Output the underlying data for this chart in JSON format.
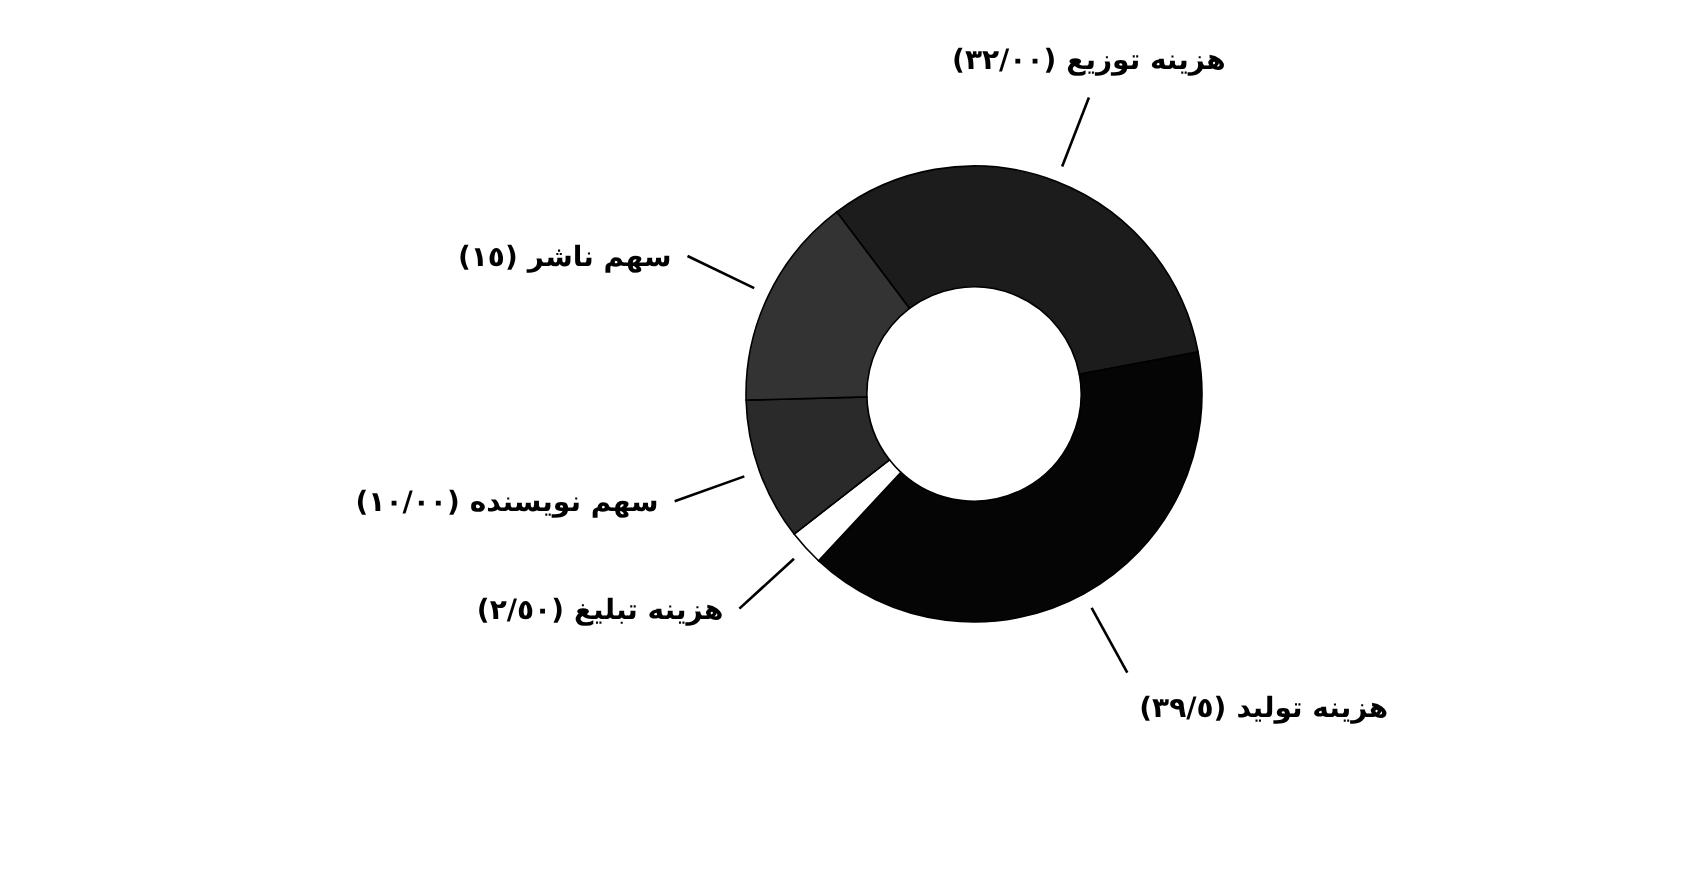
{
  "chart_data": {
    "type": "donut",
    "categories": [
      "هزینه توزیع",
      "هزینه تولید",
      "هزینه تبلیغ",
      "سهم نویسنده",
      "سهم ناشر"
    ],
    "values": [
      32.0,
      39.5,
      2.5,
      10.0,
      15
    ],
    "value_labels": [
      "(٣٢/٠٠)",
      "(٣٩/٥)",
      "(٢/٥٠)",
      "(١٠/٠٠)",
      "(١٥)"
    ],
    "colors": [
      "#1c1c1c",
      "#050505",
      "#ffffff",
      "#2a2a2a",
      "#333333"
    ]
  }
}
